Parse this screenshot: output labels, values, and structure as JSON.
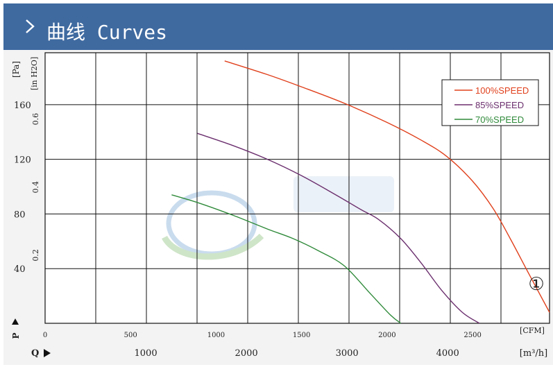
{
  "header": {
    "title": "曲线 Curves"
  },
  "chart_data": {
    "type": "line",
    "title": "",
    "left_unit": "[Pa]",
    "left_axis_ticks": [
      "160",
      "120",
      "80",
      "40"
    ],
    "left_axis_values": [
      160,
      120,
      80,
      40
    ],
    "left_axis_label": "P",
    "inner_unit": "[in H2O]",
    "inner_axis_ticks": [
      "0.6",
      "0.4",
      "0.2"
    ],
    "inner_axis_values": [
      0.6,
      0.4,
      0.2
    ],
    "cfm_unit": "[CFM]",
    "cfm_ticks": [
      "0",
      "500",
      "1000",
      "1500",
      "2000",
      "2500"
    ],
    "cfm_values": [
      0,
      500,
      1000,
      1500,
      2000,
      2500
    ],
    "m3h_unit": "[m³/h]",
    "m3h_ticks": [
      "1000",
      "2000",
      "3000",
      "4000"
    ],
    "m3h_values": [
      1000,
      2000,
      3000,
      4000
    ],
    "bottom_axis_label": "Q",
    "xlim_cfm": [
      0,
      2950
    ],
    "ylim_pa": [
      0,
      198
    ],
    "grid": true,
    "legend_position": "top-right",
    "annotation": "①",
    "series": [
      {
        "name": "100%SPEED",
        "color": "#e0401c",
        "x": [
          1050,
          1300,
          1500,
          1750,
          2000,
          2200,
          2350,
          2500,
          2620,
          2720,
          2830,
          2950
        ],
        "y": [
          192,
          182,
          173,
          161,
          147,
          134,
          122,
          104,
          84,
          62,
          36,
          8
        ]
      },
      {
        "name": "85%SPEED",
        "color": "#6b2f6e",
        "x": [
          890,
          1100,
          1300,
          1500,
          1700,
          1850,
          1950,
          2080,
          2200,
          2320,
          2440,
          2540
        ],
        "y": [
          139,
          130,
          120,
          108,
          94,
          83,
          76,
          62,
          44,
          24,
          8,
          0
        ]
      },
      {
        "name": "70%SPEED",
        "color": "#2f8a3a",
        "x": [
          740,
          900,
          1100,
          1300,
          1450,
          1600,
          1750,
          1900,
          2020,
          2080
        ],
        "y": [
          94,
          88,
          79,
          69,
          62,
          53,
          42,
          22,
          6,
          0
        ]
      }
    ]
  }
}
